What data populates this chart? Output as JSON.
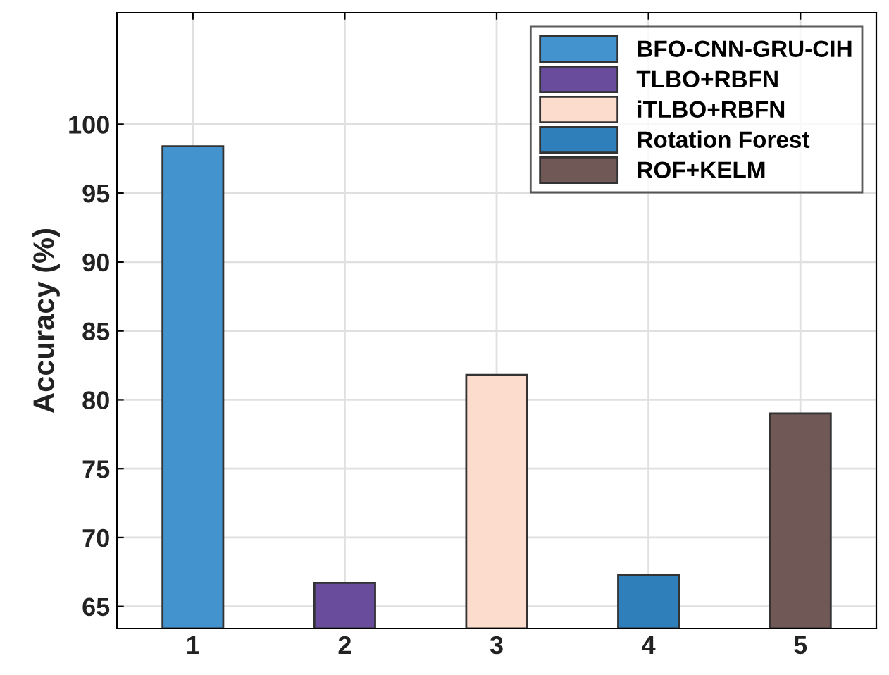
{
  "chart_data": {
    "type": "bar",
    "ylabel": "Accuracy (%)",
    "categories": [
      "1",
      "2",
      "3",
      "4",
      "5"
    ],
    "series": [
      {
        "name": "BFO-CNN-GRU-CIH",
        "color": "#4393cf",
        "values": [
          98.4,
          null,
          null,
          null,
          null
        ]
      },
      {
        "name": "TLBO+RBFN",
        "color": "#6a4c9c",
        "values": [
          null,
          66.7,
          null,
          null,
          null
        ]
      },
      {
        "name": "iTLBO+RBFN",
        "color": "#fcdccc",
        "values": [
          null,
          null,
          81.8,
          null,
          null
        ]
      },
      {
        "name": "Rotation Forest",
        "color": "#2e7fba",
        "values": [
          null,
          null,
          null,
          67.3,
          null
        ]
      },
      {
        "name": "ROF+KELM",
        "color": "#705856",
        "values": [
          null,
          null,
          null,
          null,
          79.0
        ]
      }
    ],
    "ylim": [
      63.4,
      108.1
    ],
    "yticks": [
      65,
      70,
      75,
      80,
      85,
      90,
      95,
      100
    ],
    "grid": true,
    "legend": "top right"
  }
}
